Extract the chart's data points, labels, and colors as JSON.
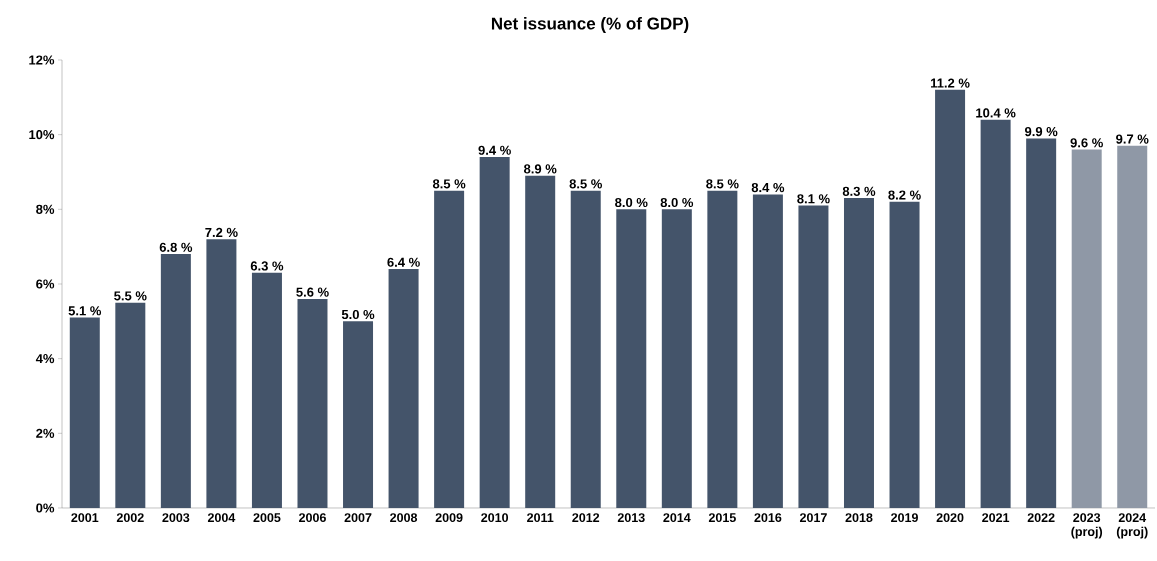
{
  "chart_data": {
    "type": "bar",
    "title": "Net issuance (% of GDP)",
    "categories": [
      "2001",
      "2002",
      "2003",
      "2004",
      "2005",
      "2006",
      "2007",
      "2008",
      "2009",
      "2010",
      "2011",
      "2012",
      "2013",
      "2014",
      "2015",
      "2016",
      "2017",
      "2018",
      "2019",
      "2020",
      "2021",
      "2022",
      "2023 (proj)",
      "2024 (proj)"
    ],
    "values": [
      5.1,
      5.5,
      6.8,
      7.2,
      6.3,
      5.6,
      5.0,
      6.4,
      8.5,
      9.4,
      8.9,
      8.5,
      8.0,
      8.0,
      8.5,
      8.4,
      8.1,
      8.3,
      8.2,
      11.2,
      10.4,
      9.9,
      9.6,
      9.7
    ],
    "value_labels": [
      "5.1 %",
      "5.5 %",
      "6.8 %",
      "7.2 %",
      "6.3 %",
      "5.6 %",
      "5.0 %",
      "6.4 %",
      "8.5 %",
      "9.4 %",
      "8.9 %",
      "8.5 %",
      "8.0 %",
      "8.0 %",
      "8.5 %",
      "8.4 %",
      "8.1 %",
      "8.3 %",
      "8.2 %",
      "11.2 %",
      "10.4 %",
      "9.9 %",
      "9.6 %",
      "9.7 %"
    ],
    "colors": [
      "#44546a",
      "#44546a",
      "#44546a",
      "#44546a",
      "#44546a",
      "#44546a",
      "#44546a",
      "#44546a",
      "#44546a",
      "#44546a",
      "#44546a",
      "#44546a",
      "#44546a",
      "#44546a",
      "#44546a",
      "#44546a",
      "#44546a",
      "#44546a",
      "#44546a",
      "#44546a",
      "#44546a",
      "#44546a",
      "#8f98a6",
      "#8f98a6"
    ],
    "ylim": [
      0,
      12
    ],
    "yticks": [
      {
        "value": 0,
        "label": "0%"
      },
      {
        "value": 2,
        "label": "2%"
      },
      {
        "value": 4,
        "label": "4%"
      },
      {
        "value": 6,
        "label": "6%"
      },
      {
        "value": 8,
        "label": "8%"
      },
      {
        "value": 10,
        "label": "10%"
      },
      {
        "value": 12,
        "label": "12%"
      }
    ],
    "grid": false
  }
}
